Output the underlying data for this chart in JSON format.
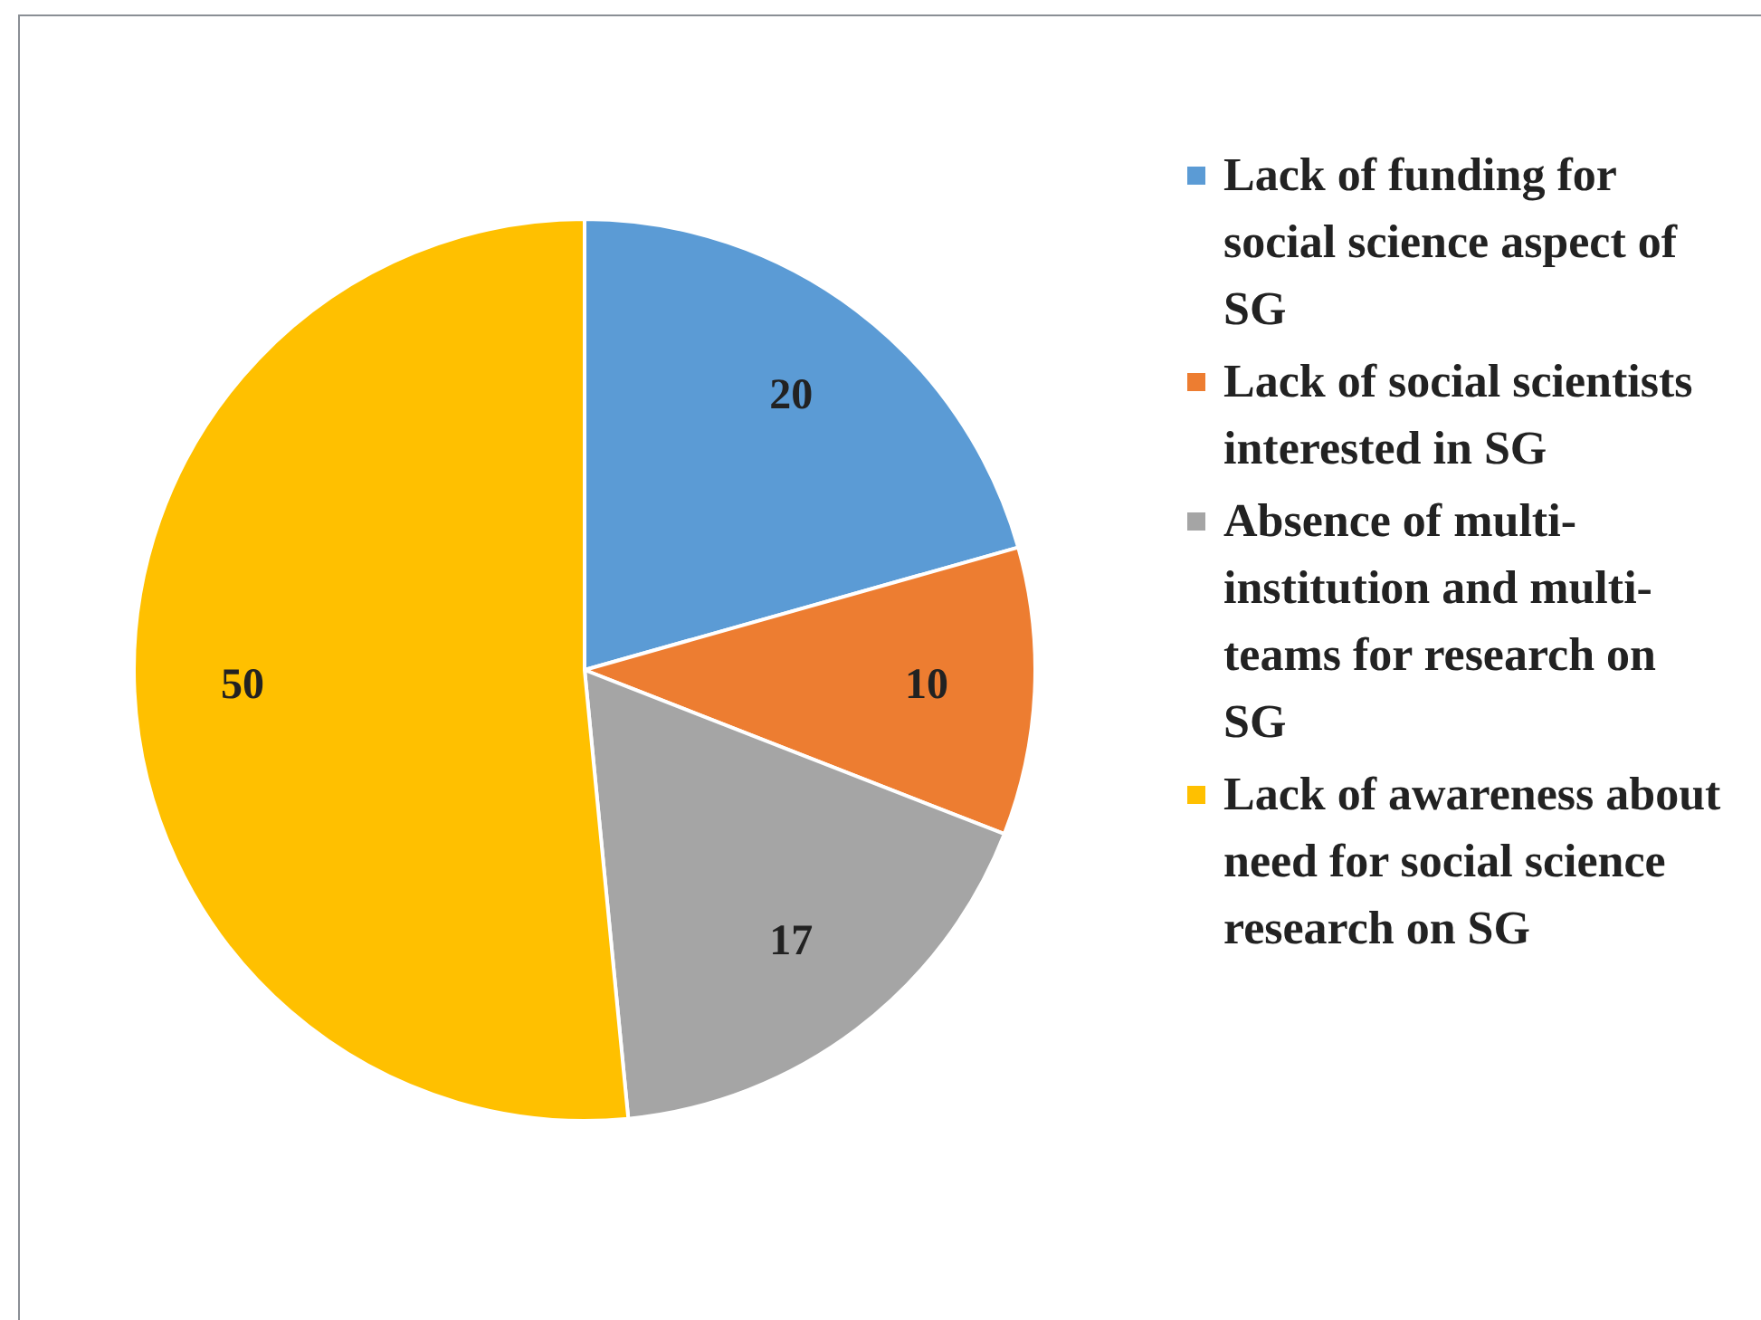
{
  "chart_data": {
    "type": "pie",
    "categories": [
      "Lack of funding for social science aspect of SG",
      "Lack of social scientists interested in SG",
      "Absence of multi-institution and multi-teams for research on SG",
      "Lack of awareness about need for social science research on SG"
    ],
    "values": [
      20,
      10,
      17,
      50
    ],
    "colors": [
      "#5b9bd5",
      "#ed7d31",
      "#a5a5a5",
      "#ffc000"
    ],
    "data_labels": true,
    "legend": "right"
  }
}
